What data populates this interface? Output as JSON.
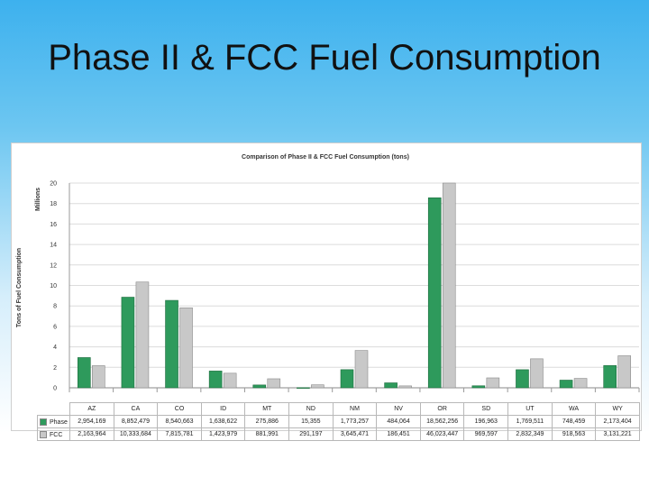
{
  "slide": {
    "title": "Phase II & FCC Fuel Consumption"
  },
  "chart_data": {
    "type": "bar",
    "title": "Comparison of Phase II & FCC Fuel Consumption (tons)",
    "ylabel": "Tons of Fuel Consumption",
    "yunit": "Millions",
    "ylim": [
      0,
      20
    ],
    "yticks": [
      "0",
      "2",
      "4",
      "6",
      "8",
      "10",
      "12",
      "14",
      "16",
      "18",
      "20"
    ],
    "grid": true,
    "categories": [
      "AZ",
      "CA",
      "CO",
      "ID",
      "MT",
      "ND",
      "NM",
      "NV",
      "OR",
      "SD",
      "UT",
      "WA",
      "WY"
    ],
    "series": [
      {
        "name": "Phase II",
        "color": "#2e9a5c",
        "values": [
          2954169,
          8852479,
          8540663,
          1638622,
          275886,
          15355,
          1773257,
          484064,
          18562256,
          196963,
          1769511,
          748459,
          2173404
        ],
        "labels": [
          "2,954,169",
          "8,852,479",
          "8,540,663",
          "1,638,622",
          "275,886",
          "15,355",
          "1,773,257",
          "484,064",
          "18,562,256",
          "196,963",
          "1,769,511",
          "748,459",
          "2,173,404"
        ]
      },
      {
        "name": "FCC",
        "color": "#c8c8c8",
        "values": [
          2163964,
          10333684,
          7815781,
          1423979,
          881991,
          291197,
          3645471,
          186451,
          46023447,
          969597,
          2832349,
          918563,
          3131221
        ],
        "labels": [
          "2,163,964",
          "10,333,684",
          "7,815,781",
          "1,423,979",
          "881,991",
          "291,197",
          "3,645,471",
          "186,451",
          "46,023,447",
          "969,597",
          "2,832,349",
          "918,563",
          "3,131,221"
        ]
      }
    ]
  }
}
